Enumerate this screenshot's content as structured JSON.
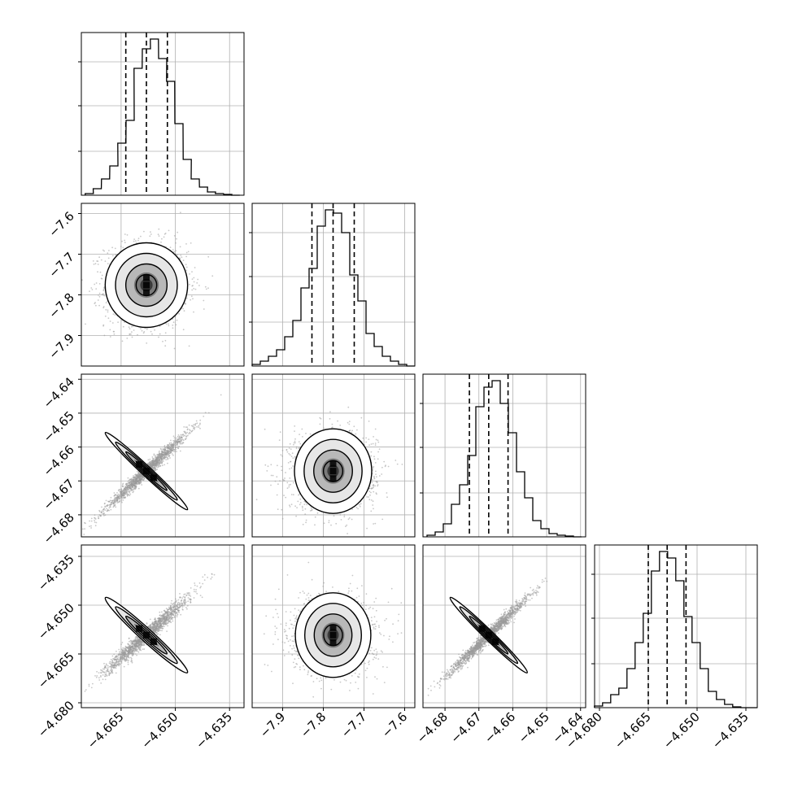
{
  "chart_data": {
    "type": "corner",
    "parameters": [
      {
        "range": [
          -4.676,
          -4.631
        ],
        "ticks": [
          -4.665,
          -4.65,
          -4.635
        ],
        "tick_labels": [
          "−4.665",
          "−4.650",
          "−4.635"
        ],
        "quantiles": [
          -4.6637,
          -4.658,
          -4.6522
        ],
        "hist_centers": [
          -4.6738,
          -4.6716,
          -4.6693,
          -4.667,
          -4.6648,
          -4.6625,
          -4.6603,
          -4.658,
          -4.6558,
          -4.6535,
          -4.6513,
          -4.649,
          -4.6467,
          -4.6445,
          -4.6422,
          -4.64,
          -4.6378,
          -4.6355,
          -4.6333
        ],
        "hist_counts": [
          0.01,
          0.04,
          0.1,
          0.18,
          0.32,
          0.46,
          0.78,
          0.9,
          0.96,
          0.84,
          0.7,
          0.44,
          0.22,
          0.1,
          0.05,
          0.02,
          0.01,
          0.005,
          0.0
        ],
        "hist_grid": [
          0.27,
          0.55,
          0.82
        ]
      },
      {
        "range": [
          -7.975,
          -7.575
        ],
        "ticks": [
          -7.9,
          -7.8,
          -7.7,
          -7.6
        ],
        "tick_labels": [
          "−7.9",
          "−7.8",
          "−7.7",
          "−7.6"
        ],
        "quantiles": [
          -7.828,
          -7.776,
          -7.724
        ],
        "hist_centers": [
          -7.965,
          -7.945,
          -7.925,
          -7.905,
          -7.885,
          -7.865,
          -7.845,
          -7.825,
          -7.805,
          -7.785,
          -7.765,
          -7.745,
          -7.725,
          -7.705,
          -7.685,
          -7.665,
          -7.645,
          -7.625,
          -7.605,
          -7.585
        ],
        "hist_counts": [
          0.01,
          0.03,
          0.06,
          0.1,
          0.18,
          0.28,
          0.48,
          0.6,
          0.86,
          0.96,
          0.94,
          0.82,
          0.56,
          0.4,
          0.2,
          0.12,
          0.06,
          0.03,
          0.01,
          0.0
        ],
        "hist_grid": [
          0.27,
          0.55,
          0.82
        ]
      },
      {
        "range": [
          -4.6865,
          -4.6385
        ],
        "ticks": [
          -4.68,
          -4.67,
          -4.66,
          -4.65,
          -4.64
        ],
        "tick_labels": [
          "−4.68",
          "−4.67",
          "−4.66",
          "−4.65",
          "−4.64"
        ],
        "quantiles": [
          -4.6728,
          -4.6671,
          -4.6614
        ],
        "hist_centers": [
          -4.6841,
          -4.6817,
          -4.6793,
          -4.6769,
          -4.6745,
          -4.6721,
          -4.6697,
          -4.6673,
          -4.6649,
          -4.6625,
          -4.6601,
          -4.6577,
          -4.6553,
          -4.6529,
          -4.6505,
          -4.6481,
          -4.6457,
          -4.6433,
          -4.6409
        ],
        "hist_counts": [
          0.01,
          0.03,
          0.08,
          0.2,
          0.32,
          0.5,
          0.8,
          0.92,
          0.96,
          0.82,
          0.64,
          0.4,
          0.24,
          0.1,
          0.05,
          0.02,
          0.01,
          0.005,
          0.0
        ],
        "hist_grid": [
          0.27,
          0.55,
          0.82
        ]
      },
      {
        "range": [
          -4.6815,
          -4.6315
        ],
        "ticks": [
          -4.68,
          -4.665,
          -4.65,
          -4.635
        ],
        "tick_labels": [
          "−4.680",
          "−4.665",
          "−4.650",
          "−4.635"
        ],
        "quantiles": [
          -4.665,
          -4.6592,
          -4.6534
        ],
        "hist_centers": [
          -4.6803,
          -4.6778,
          -4.6753,
          -4.6728,
          -4.6703,
          -4.6678,
          -4.6653,
          -4.6628,
          -4.6603,
          -4.6578,
          -4.6553,
          -4.6528,
          -4.6503,
          -4.6478,
          -4.6453,
          -4.6428,
          -4.6403,
          -4.6378,
          -4.6353,
          -4.6328
        ],
        "hist_counts": [
          0.01,
          0.03,
          0.08,
          0.12,
          0.24,
          0.4,
          0.58,
          0.84,
          0.96,
          0.92,
          0.78,
          0.56,
          0.4,
          0.24,
          0.1,
          0.05,
          0.02,
          0.005,
          0.0,
          0.0
        ],
        "hist_grid": [
          0.27,
          0.55,
          0.82
        ]
      }
    ],
    "pairs": [
      {
        "row": 1,
        "col": 0,
        "mean": [
          -4.658,
          -7.776
        ],
        "sd": [
          0.0057,
          0.052
        ],
        "rho": 0.0
      },
      {
        "row": 2,
        "col": 0,
        "mean": [
          -4.658,
          -4.6671
        ],
        "sd": [
          0.0057,
          0.0057
        ],
        "rho": 0.985
      },
      {
        "row": 2,
        "col": 1,
        "mean": [
          -7.776,
          -4.6671
        ],
        "sd": [
          0.052,
          0.0057
        ],
        "rho": 0.0
      },
      {
        "row": 3,
        "col": 0,
        "mean": [
          -4.658,
          -4.6592
        ],
        "sd": [
          0.0057,
          0.0058
        ],
        "rho": 0.975
      },
      {
        "row": 3,
        "col": 1,
        "mean": [
          -7.776,
          -4.6592
        ],
        "sd": [
          0.052,
          0.0058
        ],
        "rho": 0.0
      },
      {
        "row": 3,
        "col": 2,
        "mean": [
          -4.6671,
          -4.6592
        ],
        "sd": [
          0.0057,
          0.0058
        ],
        "rho": 0.985
      }
    ],
    "contour_levels_sigma": [
      0.5,
      1.0,
      1.5,
      2.0
    ],
    "grid": true,
    "colors": {
      "line": "#000000",
      "grid": "#b0b0b0",
      "points": "#9a9a9a",
      "density": "#000000"
    }
  }
}
